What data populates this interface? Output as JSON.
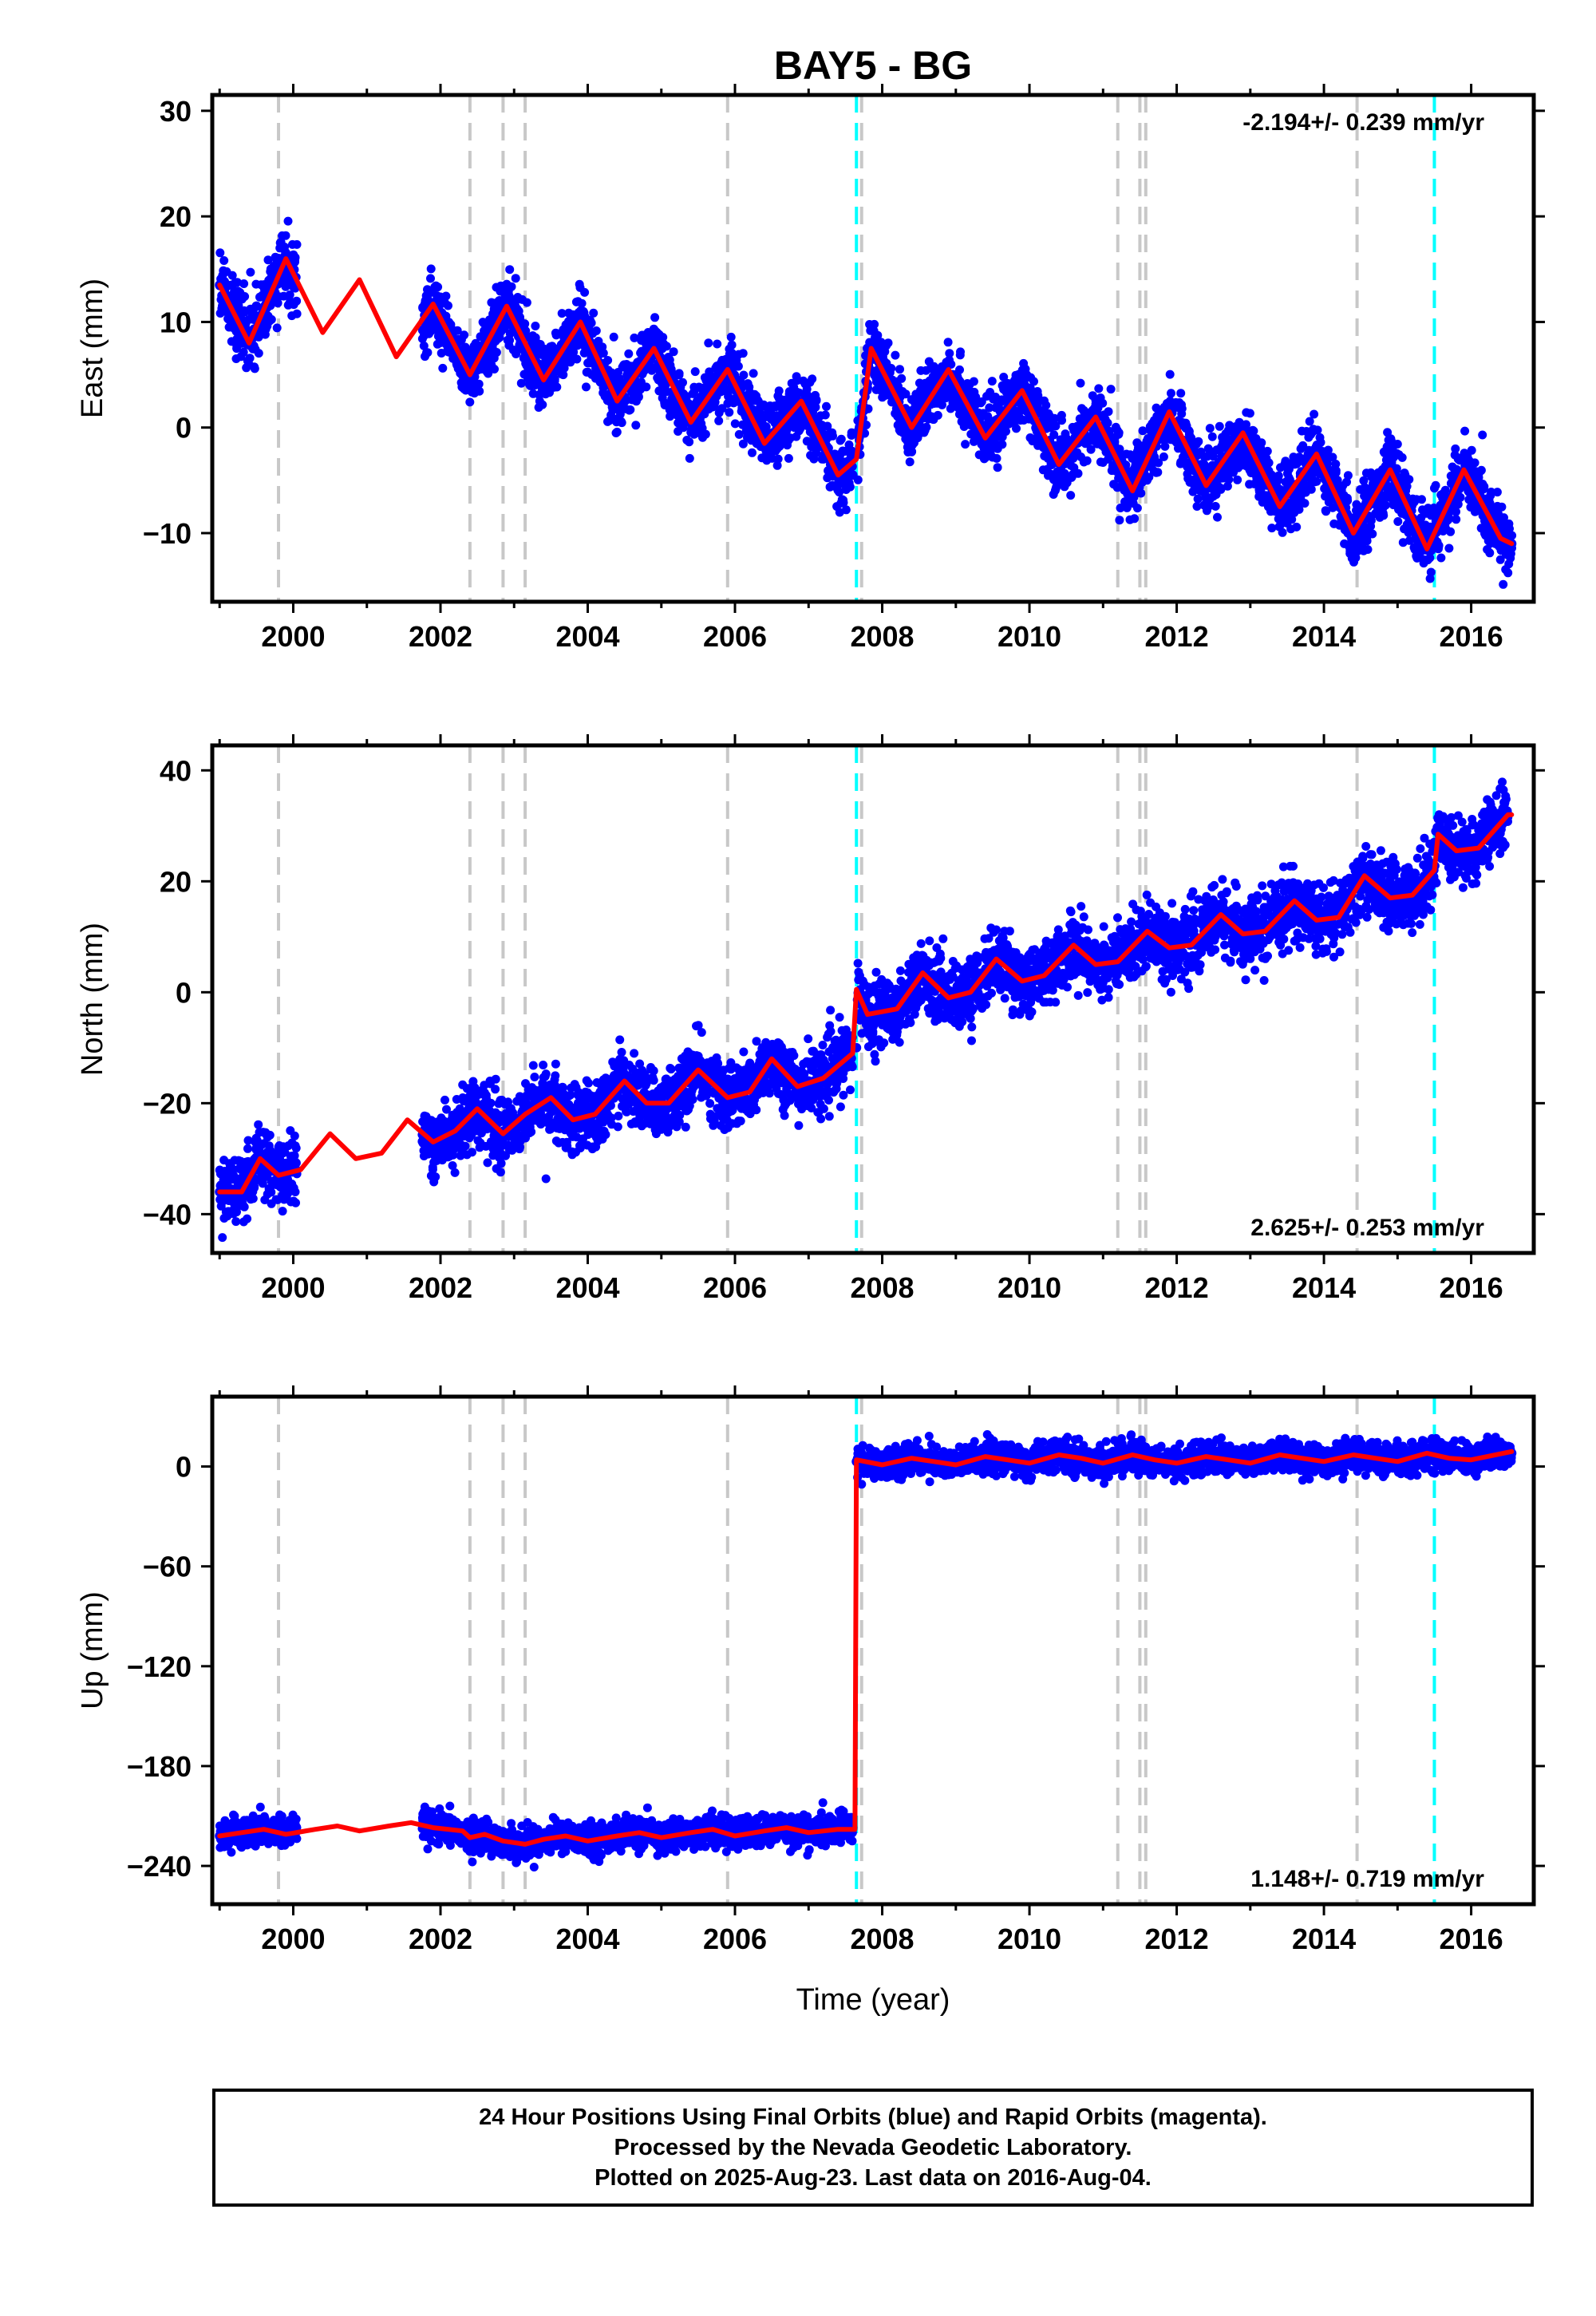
{
  "title": "BAY5 - BG",
  "xlabel": "Time (year)",
  "x_ticks": [
    "2000",
    "2002",
    "2004",
    "2006",
    "2008",
    "2010",
    "2012",
    "2014",
    "2016"
  ],
  "colors": {
    "data_points": "#0000ff",
    "model_fit": "#ff0000",
    "equipment_change": "#c8c8c8",
    "earthquake_event": "#00ffff"
  },
  "chart_data": [
    {
      "type": "scatter",
      "panel": "east",
      "ylabel": "East (mm)",
      "xlim": [
        1998.9,
        2016.85
      ],
      "ylim": [
        -16.5,
        31.5
      ],
      "y_ticks": [
        30,
        20,
        10,
        0,
        -10
      ],
      "rate_text": "-2.194+/- 0.239 mm/yr",
      "rate_position": "top-right",
      "series": [
        {
          "role": "data",
          "color": "blue",
          "x": [
            1999.0,
            1999.1,
            1999.2,
            1999.3,
            1999.4,
            1999.5,
            1999.6,
            1999.7,
            1999.8,
            1999.9,
            2000.0,
            2001.8,
            2002.0,
            2002.2,
            2002.5,
            2002.8,
            2003.0,
            2003.3,
            2003.8,
            2004.3,
            2004.8,
            2005.3,
            2005.8,
            2006.3,
            2006.8,
            2007.3,
            2007.6,
            2007.8,
            2008.3,
            2008.8,
            2009.3,
            2009.8,
            2010.3,
            2010.8,
            2011.3,
            2011.8,
            2012.3,
            2012.8,
            2013.3,
            2013.8,
            2014.3,
            2014.8,
            2015.3,
            2015.8,
            2016.3,
            2016.55
          ],
          "y": [
            13.5,
            11.5,
            9.5,
            8.0,
            9.0,
            11.5,
            13.5,
            15.0,
            16.0,
            16.5,
            15.0,
            12.0,
            9.0,
            6.5,
            7.5,
            12.0,
            10.0,
            5.0,
            10.0,
            2.5,
            7.5,
            0.5,
            5.5,
            -1.5,
            2.5,
            -3.5,
            -4.5,
            7.5,
            1.5,
            5.0,
            -1.0,
            3.0,
            -3.5,
            1.0,
            -5.5,
            1.5,
            -5.5,
            -0.5,
            -7.0,
            -2.5,
            -9.5,
            -4.0,
            -11.0,
            -4.0,
            -10.0,
            -11.0
          ]
        },
        {
          "role": "fit",
          "color": "red",
          "x": [
            1999.0,
            1999.4,
            1999.9,
            2000.4,
            2000.9,
            2001.4,
            2001.9,
            2002.4,
            2002.9,
            2003.4,
            2003.9,
            2004.4,
            2004.9,
            2005.4,
            2005.9,
            2006.4,
            2006.9,
            2007.4,
            2007.65,
            2007.85,
            2008.4,
            2008.9,
            2009.4,
            2009.9,
            2010.4,
            2010.9,
            2011.4,
            2011.9,
            2012.4,
            2012.9,
            2013.4,
            2013.9,
            2014.4,
            2014.9,
            2015.4,
            2015.9,
            2016.4,
            2016.55
          ],
          "y": [
            13.5,
            8.0,
            16.0,
            9.0,
            14.0,
            6.7,
            11.7,
            5.0,
            11.5,
            4.5,
            10.0,
            2.5,
            7.5,
            0.5,
            5.5,
            -1.5,
            2.5,
            -4.5,
            -3.0,
            7.5,
            0.0,
            5.5,
            -1.0,
            3.5,
            -3.5,
            1.0,
            -6.0,
            1.5,
            -5.5,
            -0.5,
            -7.5,
            -2.5,
            -10.0,
            -4.0,
            -11.5,
            -4.0,
            -10.5,
            -11.0
          ]
        }
      ],
      "vertical_lines": {
        "equipment_change": [
          1999.8,
          2002.4,
          2002.85,
          2003.15,
          2005.9,
          2007.72,
          2011.2,
          2011.5,
          2011.58,
          2014.45
        ],
        "earthquake_event": [
          2007.65,
          2015.5
        ]
      }
    },
    {
      "type": "scatter",
      "panel": "north",
      "ylabel": "North (mm)",
      "xlim": [
        1998.9,
        2016.85
      ],
      "ylim": [
        -47.0,
        44.5
      ],
      "y_ticks": [
        40,
        20,
        0,
        -20,
        -40
      ],
      "rate_text": "2.625+/- 0.253 mm/yr",
      "rate_position": "bottom-right",
      "series": [
        {
          "role": "data",
          "color": "blue",
          "x": [
            1999.0,
            1999.2,
            1999.4,
            1999.6,
            1999.8,
            2000.0,
            2001.8,
            2002.0,
            2002.5,
            2003.0,
            2003.5,
            2004.0,
            2004.5,
            2005.0,
            2005.5,
            2006.0,
            2006.5,
            2007.0,
            2007.5,
            2007.65,
            2008.0,
            2008.5,
            2009.0,
            2009.5,
            2010.0,
            2010.5,
            2011.0,
            2011.5,
            2012.0,
            2012.5,
            2013.0,
            2013.5,
            2014.0,
            2014.5,
            2015.0,
            2015.5,
            2016.0,
            2016.5
          ],
          "y": [
            -36.0,
            -38.0,
            -32.0,
            -30.0,
            -33.0,
            -31.0,
            -27.0,
            -26.0,
            -22.0,
            -24.0,
            -20.0,
            -22.0,
            -16.0,
            -20.0,
            -14.0,
            -18.0,
            -12.0,
            -16.0,
            -10.0,
            -10.0,
            -3.0,
            2.0,
            -1.0,
            5.0,
            2.0,
            8.0,
            5.0,
            10.0,
            8.0,
            13.0,
            10.0,
            16.0,
            13.0,
            20.0,
            17.0,
            27.0,
            25.0,
            32.0
          ]
        },
        {
          "role": "fit",
          "color": "red",
          "x": [
            1999.0,
            1999.3,
            1999.55,
            1999.8,
            2000.1,
            2000.5,
            2000.85,
            2001.2,
            2001.55,
            2001.9,
            2002.2,
            2002.5,
            2002.85,
            2003.15,
            2003.5,
            2003.8,
            2004.1,
            2004.5,
            2004.8,
            2005.1,
            2005.5,
            2005.9,
            2006.2,
            2006.5,
            2006.85,
            2007.2,
            2007.6,
            2007.65,
            2007.8,
            2008.2,
            2008.55,
            2008.9,
            2009.2,
            2009.55,
            2009.9,
            2010.2,
            2010.6,
            2010.9,
            2011.2,
            2011.6,
            2011.9,
            2012.2,
            2012.6,
            2012.9,
            2013.2,
            2013.6,
            2013.9,
            2014.2,
            2014.55,
            2014.9,
            2015.2,
            2015.5,
            2015.55,
            2015.8,
            2016.1,
            2016.5,
            2016.55
          ],
          "y": [
            -36.0,
            -36.0,
            -30.0,
            -33.0,
            -32.0,
            -25.5,
            -30.0,
            -29.0,
            -23.0,
            -27.0,
            -25.0,
            -21.0,
            -25.5,
            -22.0,
            -19.0,
            -23.0,
            -22.0,
            -16.0,
            -20.0,
            -20.0,
            -14.0,
            -19.0,
            -18.0,
            -12.0,
            -17.0,
            -15.5,
            -11.0,
            0.5,
            -4.0,
            -3.0,
            3.5,
            -1.0,
            0.0,
            6.0,
            2.0,
            3.0,
            8.5,
            5.0,
            5.5,
            11.0,
            8.0,
            8.5,
            14.0,
            10.5,
            11.0,
            16.5,
            13.0,
            13.5,
            21.0,
            17.0,
            17.5,
            22.0,
            28.5,
            25.5,
            26.0,
            32.0,
            32.0
          ]
        }
      ],
      "vertical_lines": {
        "equipment_change": [
          1999.8,
          2002.4,
          2002.85,
          2003.15,
          2005.9,
          2007.72,
          2011.2,
          2011.5,
          2011.58,
          2014.45
        ],
        "earthquake_event": [
          2007.65,
          2015.5
        ]
      }
    },
    {
      "type": "scatter",
      "panel": "up",
      "ylabel": "Up (mm)",
      "xlim": [
        1998.9,
        2016.85
      ],
      "ylim": [
        -263.0,
        42.0
      ],
      "y_ticks": [
        0,
        -60,
        -120,
        -180,
        -240
      ],
      "rate_text": "1.148+/- 0.719 mm/yr",
      "rate_position": "bottom-right",
      "series": [
        {
          "role": "data",
          "color": "blue",
          "x": [
            1999.0,
            1999.3,
            1999.6,
            1999.9,
            2001.8,
            2002.2,
            2002.6,
            2003.0,
            2003.5,
            2004.0,
            2004.5,
            2005.0,
            2005.5,
            2006.0,
            2006.5,
            2007.0,
            2007.6,
            2007.65,
            2008.0,
            2008.5,
            2009.0,
            2009.5,
            2010.0,
            2010.5,
            2011.0,
            2011.5,
            2012.0,
            2012.5,
            2013.0,
            2013.5,
            2014.0,
            2014.5,
            2015.0,
            2015.5,
            2016.0,
            2016.55
          ],
          "y": [
            -222.0,
            -220.0,
            -218.0,
            -220.0,
            -215.0,
            -218.0,
            -220.0,
            -226.0,
            -222.0,
            -226.0,
            -222.0,
            -224.0,
            -221.0,
            -223.0,
            -219.0,
            -222.0,
            -217.0,
            3.0,
            0.0,
            4.0,
            1.0,
            5.0,
            1.0,
            6.0,
            2.0,
            5.0,
            1.0,
            5.0,
            2.0,
            6.0,
            2.0,
            6.0,
            3.0,
            7.0,
            3.0,
            8.0
          ]
        },
        {
          "role": "fit",
          "color": "red",
          "x": [
            1999.0,
            1999.3,
            1999.6,
            1999.9,
            2000.3,
            2000.6,
            2000.9,
            2001.3,
            2001.6,
            2001.9,
            2002.3,
            2002.4,
            2002.6,
            2002.85,
            2003.15,
            2003.4,
            2003.7,
            2004.0,
            2004.4,
            2004.7,
            2005.0,
            2005.4,
            2005.7,
            2006.0,
            2006.4,
            2006.7,
            2007.0,
            2007.4,
            2007.63,
            2007.65,
            2008.0,
            2008.4,
            2008.7,
            2009.0,
            2009.4,
            2009.7,
            2010.0,
            2010.4,
            2010.7,
            2011.0,
            2011.4,
            2011.7,
            2012.0,
            2012.4,
            2012.7,
            2013.0,
            2013.4,
            2013.7,
            2014.0,
            2014.4,
            2014.7,
            2015.0,
            2015.4,
            2015.7,
            2016.0,
            2016.55
          ],
          "y": [
            -222.0,
            -220.0,
            -218.0,
            -221.0,
            -218.0,
            -216.0,
            -219.0,
            -216.0,
            -214.0,
            -217.0,
            -219.0,
            -223.0,
            -221.0,
            -225.0,
            -227.0,
            -224.0,
            -222.0,
            -225.0,
            -222.0,
            -220.0,
            -223.0,
            -220.0,
            -218.0,
            -222.0,
            -219.0,
            -217.0,
            -220.0,
            -218.0,
            -218.0,
            4.0,
            1.0,
            5.0,
            3.0,
            1.0,
            6.0,
            4.0,
            2.0,
            7.0,
            5.0,
            2.0,
            7.0,
            4.0,
            2.0,
            6.0,
            4.0,
            2.0,
            7.0,
            5.0,
            3.0,
            7.0,
            5.0,
            3.0,
            8.0,
            5.0,
            4.0,
            9.0
          ]
        }
      ],
      "vertical_lines": {
        "equipment_change": [
          1999.8,
          2002.4,
          2002.85,
          2003.15,
          2005.9,
          2007.72,
          2011.2,
          2011.5,
          2011.58,
          2014.45
        ],
        "earthquake_event": [
          2007.65,
          2015.5
        ]
      }
    }
  ],
  "footer": {
    "line1": "24 Hour Positions Using Final Orbits (blue) and Rapid Orbits (magenta).",
    "line2": "Processed by the Nevada Geodetic Laboratory.",
    "line3": "Plotted on 2025-Aug-23. Last data on 2016-Aug-04."
  }
}
